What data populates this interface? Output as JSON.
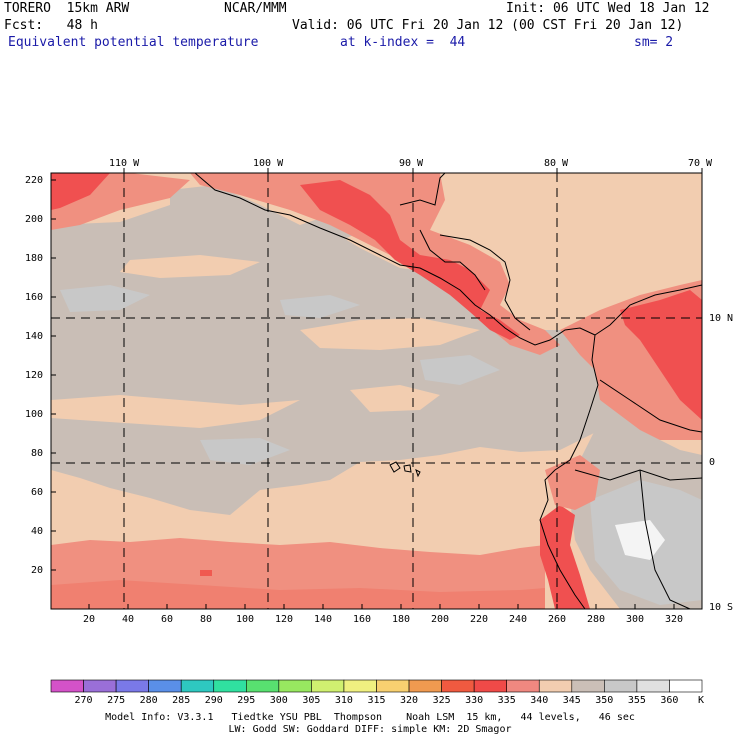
{
  "header": {
    "model": "TORERO  15km ARW",
    "center": "NCAR/MMM",
    "init": "Init: 06 UTC Wed 18 Jan 12",
    "fcst": "Fcst:   48 h",
    "valid": "Valid: 06 UTC Fri 20 Jan 12 (00 CST Fri 20 Jan 12)",
    "field": "Equivalent potential temperature",
    "level": "at k-index =  44",
    "smooth": "sm= 2"
  },
  "axes": {
    "y_ticks": [
      "20",
      "40",
      "60",
      "80",
      "100",
      "120",
      "140",
      "160",
      "180",
      "200",
      "220"
    ],
    "x_ticks": [
      "20",
      "40",
      "60",
      "80",
      "100",
      "120",
      "140",
      "160",
      "180",
      "200",
      "220",
      "240",
      "260",
      "280",
      "300",
      "320"
    ],
    "lon_labels": [
      "110 W",
      "100 W",
      "90 W",
      "80 W",
      "70 W"
    ],
    "lat_labels": [
      "10 N",
      "0",
      "10 S"
    ]
  },
  "colorbar": {
    "labels": [
      "270",
      "275",
      "280",
      "285",
      "290",
      "295",
      "300",
      "305",
      "310",
      "315",
      "320",
      "325",
      "330",
      "335",
      "340",
      "345",
      "350",
      "355",
      "360"
    ],
    "unit": "K",
    "colors": [
      "#d452c8",
      "#9a6fd8",
      "#7a79e8",
      "#5a8fe8",
      "#2ec8c0",
      "#30e0a0",
      "#58e070",
      "#98e860",
      "#d0f070",
      "#f0f080",
      "#f8d070",
      "#f09a50",
      "#f05a40",
      "#f04a48",
      "#f08880",
      "#f2cdb0",
      "#cbbfb7",
      "#c8c8c8",
      "#e0e0e0",
      "#ffffff"
    ]
  },
  "footer": {
    "line1": "Model Info: V3.3.1   Tiedtke YSU PBL  Thompson    Noah LSM  15 km,   44 levels,   46 sec",
    "line2": "LW: Godd SW: Goddard DIFF: simple KM: 2D Smagor"
  },
  "map_colors": {
    "tan": "#f2cdb0",
    "gray": "#c9beb6",
    "lightgray": "#c8c8c8",
    "salmon": "#f09080",
    "red": "#f05050",
    "white": "#f4f4f4"
  }
}
